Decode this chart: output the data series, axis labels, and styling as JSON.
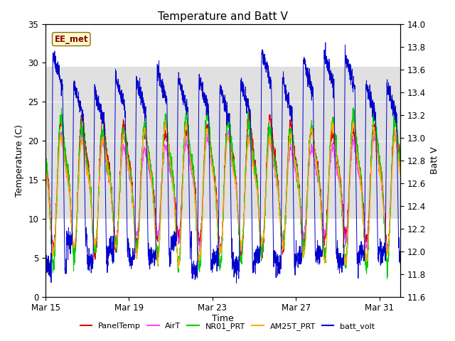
{
  "title": "Temperature and Batt V",
  "xlabel": "Time",
  "ylabel_left": "Temperature (C)",
  "ylabel_right": "Batt V",
  "annotation": "EE_met",
  "ylim_left": [
    0,
    35
  ],
  "ylim_right": [
    11.6,
    14.0
  ],
  "xtick_labels": [
    "Mar 15",
    "Mar 19",
    "Mar 23",
    "Mar 27",
    "Mar 31"
  ],
  "xtick_positions": [
    0,
    4,
    8,
    12,
    16
  ],
  "line_colors": {
    "PanelTemp": "#dd0000",
    "AirT": "#ff44ff",
    "NR01_PRT": "#00cc00",
    "AM25T_PRT": "#ffaa00",
    "batt_volt": "#0000cc"
  },
  "shaded_band_ymin": 10,
  "shaded_band_ymax": 29.5,
  "shaded_color": "#e0e0e0",
  "n_days": 17,
  "samples_per_day": 144,
  "title_fontsize": 11,
  "axis_fontsize": 9,
  "tick_fontsize": 8.5,
  "batt_ylim": [
    11.6,
    14.0
  ],
  "batt_night_low": 12.0,
  "batt_day_high": 13.6,
  "temp_base": 13.0,
  "temp_amp": 8.0
}
